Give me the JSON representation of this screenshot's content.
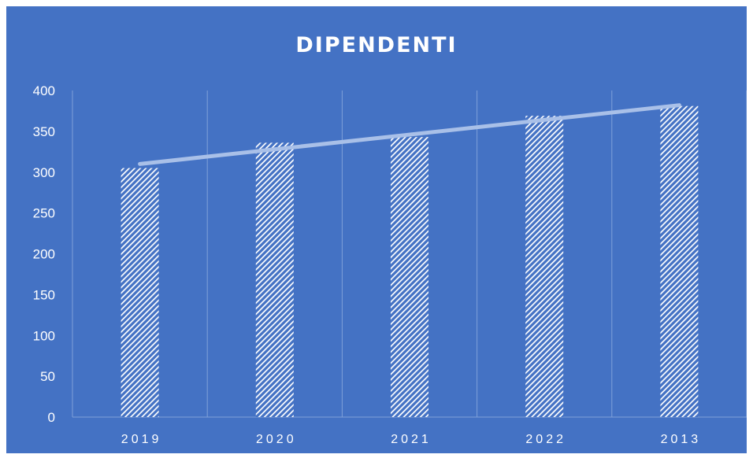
{
  "colors": {
    "background": "#4472C4",
    "gridline": "#7FA0D9",
    "bar_pattern": "#ffffff",
    "trendline": "#A9C0E8",
    "text": "#ffffff"
  },
  "chart_data": {
    "type": "bar",
    "title": "DIPENDENTI",
    "xlabel": "",
    "ylabel": "",
    "categories": [
      "2019",
      "2020",
      "2021",
      "2022",
      "2013"
    ],
    "values": [
      305,
      336,
      343,
      369,
      381
    ],
    "ylim": [
      0,
      400
    ],
    "yticks": [
      0,
      50,
      100,
      150,
      200,
      250,
      300,
      350,
      400
    ],
    "grid": "vertical category separators",
    "legend": "none",
    "bar_fill": "white diagonal hatch pattern",
    "trendline": {
      "type": "linear",
      "start_value": 310,
      "end_value": 382
    }
  }
}
